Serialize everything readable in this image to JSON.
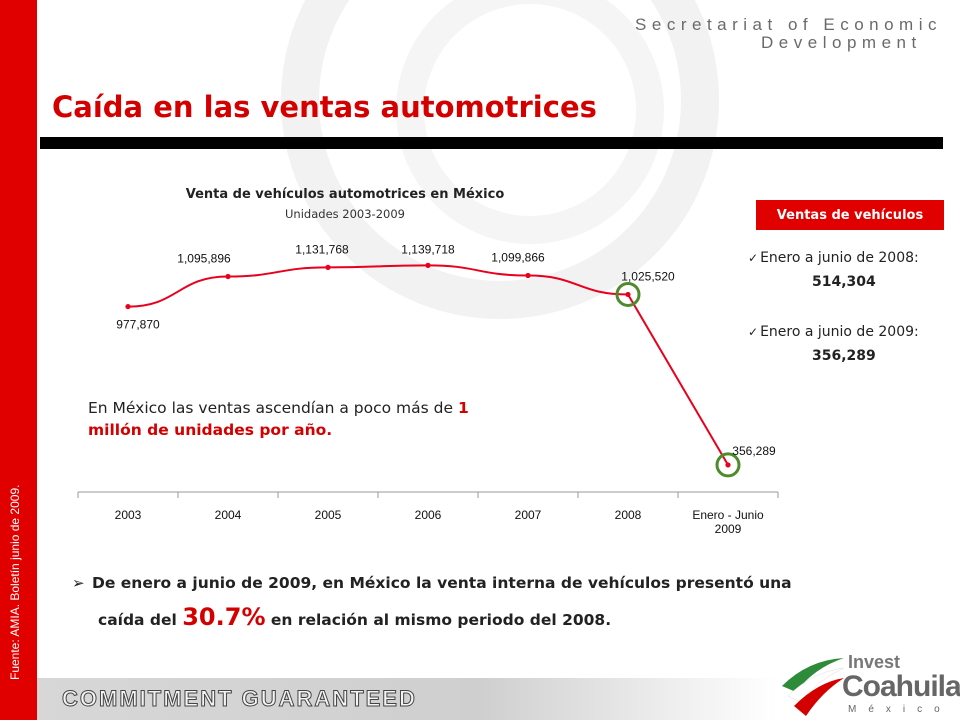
{
  "header": {
    "org_line1": "Secretariat of Economic",
    "org_line2": "Development"
  },
  "slide": {
    "title": "Caída en las ventas automotrices",
    "source_note": "Fuente: AMIA. Boletín junio de 2009."
  },
  "chart_data": {
    "type": "line",
    "title": "Venta de vehículos automotrices en México",
    "subtitle": "Unidades 2003-2009",
    "categories": [
      "2003",
      "2004",
      "2005",
      "2006",
      "2007",
      "2008",
      "Enero - Junio 2009"
    ],
    "category_lines": [
      [
        "2003"
      ],
      [
        "2004"
      ],
      [
        "2005"
      ],
      [
        "2006"
      ],
      [
        "2007"
      ],
      [
        "2008"
      ],
      [
        "Enero - Junio",
        "2009"
      ]
    ],
    "values": [
      977870,
      1095896,
      1131768,
      1139718,
      1099866,
      1025520,
      356289
    ],
    "value_labels": [
      "977,870",
      "1,095,896",
      "1,131,768",
      "1,139,718",
      "1,099,866",
      "1,025,520",
      "356,289"
    ],
    "ylim": [
      250000,
      1200000
    ],
    "highlighted_points": [
      "2008",
      "Enero - Junio 2009"
    ],
    "line_color": "#e8001c",
    "highlight_color": "#4f8b2e",
    "grid": false,
    "legend": "none"
  },
  "callout": {
    "part1": "En México las ventas ascendían a poco más de ",
    "highlight": "1 millón de unidades por año."
  },
  "side_panel": {
    "badge": "Ventas de vehículos",
    "items": [
      {
        "label": "Enero a junio de 2008:",
        "value": "514,304"
      },
      {
        "label": "Enero a junio de 2009:",
        "value": "356,289"
      }
    ]
  },
  "bottom_note": {
    "line1": "De enero a junio de 2009, en México la venta interna de vehículos presentó una",
    "line2_pre": "caída del ",
    "pct": "30.7%",
    "line2_post": " en relación al mismo periodo del 2008."
  },
  "footer": {
    "tagline": "COMMITMENT GUARANTEED"
  },
  "logo": {
    "line1": "Invest",
    "line2": "Coahuila",
    "line3": "México"
  },
  "colors": {
    "brand_red": "#e00000",
    "title_red": "#d40000",
    "dark_bar": "#000000"
  }
}
